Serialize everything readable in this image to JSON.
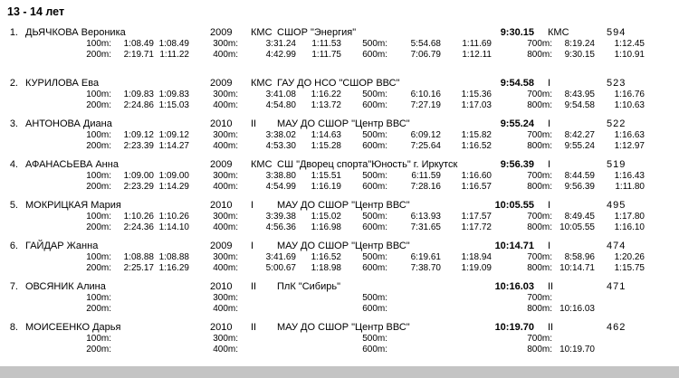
{
  "page": {
    "title": "13 - 14 лет"
  },
  "athletes": [
    {
      "num": "1.",
      "name": "ДЬЯЧКОВА Вероника",
      "year": "2009",
      "grade": "КМС",
      "club": "СШОР \"Энергия\"",
      "final": "9:30.15",
      "earned": "КМС",
      "points": "594",
      "splits": [
        [
          {
            "label": "100m:",
            "cum": "1:08.49",
            "split": "1:08.49"
          },
          {
            "label": "300m:",
            "cum": "3:31.24",
            "split": "1:11.53"
          },
          {
            "label": "500m:",
            "cum": "5:54.68",
            "split": "1:11.69"
          },
          {
            "label": "700m:",
            "cum": "8:19.24",
            "split": "1:12.45"
          }
        ],
        [
          {
            "label": "200m:",
            "cum": "2:19.71",
            "split": "1:11.22"
          },
          {
            "label": "400m:",
            "cum": "4:42.99",
            "split": "1:11.75"
          },
          {
            "label": "600m:",
            "cum": "7:06.79",
            "split": "1:12.11"
          },
          {
            "label": "800m:",
            "cum": "9:30.15",
            "split": "1:10.91"
          }
        ]
      ]
    },
    {
      "num": "2.",
      "name": "КУРИЛОВА Ева",
      "year": "2009",
      "grade": "КМС",
      "club": "ГАУ ДО НСО \"СШОР ВВС\"",
      "final": "9:54.58",
      "earned": "I",
      "points": "523",
      "splits": [
        [
          {
            "label": "100m:",
            "cum": "1:09.83",
            "split": "1:09.83"
          },
          {
            "label": "300m:",
            "cum": "3:41.08",
            "split": "1:16.22"
          },
          {
            "label": "500m:",
            "cum": "6:10.16",
            "split": "1:15.36"
          },
          {
            "label": "700m:",
            "cum": "8:43.95",
            "split": "1:16.76"
          }
        ],
        [
          {
            "label": "200m:",
            "cum": "2:24.86",
            "split": "1:15.03"
          },
          {
            "label": "400m:",
            "cum": "4:54.80",
            "split": "1:13.72"
          },
          {
            "label": "600m:",
            "cum": "7:27.19",
            "split": "1:17.03"
          },
          {
            "label": "800m:",
            "cum": "9:54.58",
            "split": "1:10.63"
          }
        ]
      ]
    },
    {
      "num": "3.",
      "name": "АНТОНОВА Диана",
      "year": "2010",
      "grade": "II",
      "club": "МАУ ДО СШОР \"Центр ВВС\"",
      "final": "9:55.24",
      "earned": "I",
      "points": "522",
      "splits": [
        [
          {
            "label": "100m:",
            "cum": "1:09.12",
            "split": "1:09.12"
          },
          {
            "label": "300m:",
            "cum": "3:38.02",
            "split": "1:14.63"
          },
          {
            "label": "500m:",
            "cum": "6:09.12",
            "split": "1:15.82"
          },
          {
            "label": "700m:",
            "cum": "8:42.27",
            "split": "1:16.63"
          }
        ],
        [
          {
            "label": "200m:",
            "cum": "2:23.39",
            "split": "1:14.27"
          },
          {
            "label": "400m:",
            "cum": "4:53.30",
            "split": "1:15.28"
          },
          {
            "label": "600m:",
            "cum": "7:25.64",
            "split": "1:16.52"
          },
          {
            "label": "800m:",
            "cum": "9:55.24",
            "split": "1:12.97"
          }
        ]
      ]
    },
    {
      "num": "4.",
      "name": "АФАНАСЬЕВА Анна",
      "year": "2009",
      "grade": "КМС",
      "club": "СШ \"Дворец спорта\"Юность\" г. Иркутск",
      "final": "9:56.39",
      "earned": "I",
      "points": "519",
      "splits": [
        [
          {
            "label": "100m:",
            "cum": "1:09.00",
            "split": "1:09.00"
          },
          {
            "label": "300m:",
            "cum": "3:38.80",
            "split": "1:15.51"
          },
          {
            "label": "500m:",
            "cum": "6:11.59",
            "split": "1:16.60"
          },
          {
            "label": "700m:",
            "cum": "8:44.59",
            "split": "1:16.43"
          }
        ],
        [
          {
            "label": "200m:",
            "cum": "2:23.29",
            "split": "1:14.29"
          },
          {
            "label": "400m:",
            "cum": "4:54.99",
            "split": "1:16.19"
          },
          {
            "label": "600m:",
            "cum": "7:28.16",
            "split": "1:16.57"
          },
          {
            "label": "800m:",
            "cum": "9:56.39",
            "split": "1:11.80"
          }
        ]
      ]
    },
    {
      "num": "5.",
      "name": "МОКРИЦКАЯ Мария",
      "year": "2010",
      "grade": "I",
      "club": "МАУ ДО СШОР \"Центр ВВС\"",
      "final": "10:05.55",
      "earned": "I",
      "points": "495",
      "splits": [
        [
          {
            "label": "100m:",
            "cum": "1:10.26",
            "split": "1:10.26"
          },
          {
            "label": "300m:",
            "cum": "3:39.38",
            "split": "1:15.02"
          },
          {
            "label": "500m:",
            "cum": "6:13.93",
            "split": "1:17.57"
          },
          {
            "label": "700m:",
            "cum": "8:49.45",
            "split": "1:17.80"
          }
        ],
        [
          {
            "label": "200m:",
            "cum": "2:24.36",
            "split": "1:14.10"
          },
          {
            "label": "400m:",
            "cum": "4:56.36",
            "split": "1:16.98"
          },
          {
            "label": "600m:",
            "cum": "7:31.65",
            "split": "1:17.72"
          },
          {
            "label": "800m:",
            "cum": "10:05.55",
            "split": "1:16.10"
          }
        ]
      ]
    },
    {
      "num": "6.",
      "name": "ГАЙДАР Жанна",
      "year": "2009",
      "grade": "I",
      "club": "МАУ ДО СШОР \"Центр ВВС\"",
      "final": "10:14.71",
      "earned": "I",
      "points": "474",
      "splits": [
        [
          {
            "label": "100m:",
            "cum": "1:08.88",
            "split": "1:08.88"
          },
          {
            "label": "300m:",
            "cum": "3:41.69",
            "split": "1:16.52"
          },
          {
            "label": "500m:",
            "cum": "6:19.61",
            "split": "1:18.94"
          },
          {
            "label": "700m:",
            "cum": "8:58.96",
            "split": "1:20.26"
          }
        ],
        [
          {
            "label": "200m:",
            "cum": "2:25.17",
            "split": "1:16.29"
          },
          {
            "label": "400m:",
            "cum": "5:00.67",
            "split": "1:18.98"
          },
          {
            "label": "600m:",
            "cum": "7:38.70",
            "split": "1:19.09"
          },
          {
            "label": "800m:",
            "cum": "10:14.71",
            "split": "1:15.75"
          }
        ]
      ]
    },
    {
      "num": "7.",
      "name": "ОВСЯНИК Алина",
      "year": "2010",
      "grade": "II",
      "club": "ПлК \"Сибирь\"",
      "final": "10:16.03",
      "earned": "II",
      "points": "471",
      "splits": [
        [
          {
            "label": "100m:",
            "cum": "",
            "split": ""
          },
          {
            "label": "300m:",
            "cum": "",
            "split": ""
          },
          {
            "label": "500m:",
            "cum": "",
            "split": ""
          },
          {
            "label": "700m:",
            "cum": "",
            "split": ""
          }
        ],
        [
          {
            "label": "200m:",
            "cum": "",
            "split": ""
          },
          {
            "label": "400m:",
            "cum": "",
            "split": ""
          },
          {
            "label": "600m:",
            "cum": "",
            "split": ""
          },
          {
            "label": "800m:",
            "cum": "10:16.03",
            "split": ""
          }
        ]
      ]
    },
    {
      "num": "8.",
      "name": "МОИСЕЕНКО Дарья",
      "year": "2010",
      "grade": "II",
      "club": "МАУ ДО СШОР \"Центр ВВС\"",
      "final": "10:19.70",
      "earned": "II",
      "points": "462",
      "splits": [
        [
          {
            "label": "100m:",
            "cum": "",
            "split": ""
          },
          {
            "label": "300m:",
            "cum": "",
            "split": ""
          },
          {
            "label": "500m:",
            "cum": "",
            "split": ""
          },
          {
            "label": "700m:",
            "cum": "",
            "split": ""
          }
        ],
        [
          {
            "label": "200m:",
            "cum": "",
            "split": ""
          },
          {
            "label": "400m:",
            "cum": "",
            "split": ""
          },
          {
            "label": "600m:",
            "cum": "",
            "split": ""
          },
          {
            "label": "800m:",
            "cum": "10:19.70",
            "split": ""
          }
        ]
      ]
    }
  ]
}
